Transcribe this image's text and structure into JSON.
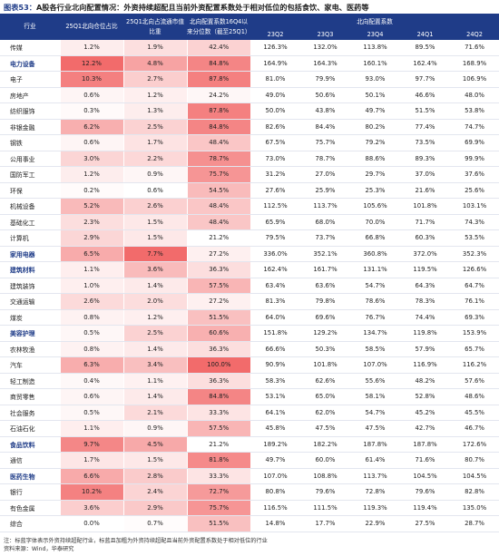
{
  "title": {
    "prefix": "图表53：",
    "text": "A股各行业北向配置情况：外资持续超配且当前外资配置系数处于相对低位的包括食饮、家电、医药等"
  },
  "table": {
    "headers": {
      "industry": "行业",
      "share": "25Q1北向仓位占比",
      "mcap": "25Q1北向占流通市值比重",
      "pct": "北向配置系数16Q4以来分位数（截至25Q1）",
      "coef": "北向配置系数",
      "quarters": [
        "23Q2",
        "23Q3",
        "23Q4",
        "24Q1",
        "24Q2"
      ]
    },
    "colors": {
      "header_bg": "#1f3c88",
      "highlight_text": "#1f3c88",
      "heat_high": "#f26b6b",
      "heat_low": "#ffffff"
    },
    "rows": [
      {
        "industry": "传媒",
        "highlight": false,
        "share": "1.2%",
        "mcap": "1.9%",
        "pct": "42.4%",
        "q": [
          "126.3%",
          "132.0%",
          "113.8%",
          "89.5%",
          "71.6%"
        ]
      },
      {
        "industry": "电力设备",
        "highlight": true,
        "share": "12.2%",
        "mcap": "4.8%",
        "pct": "84.8%",
        "q": [
          "164.9%",
          "164.3%",
          "160.1%",
          "162.4%",
          "168.9%"
        ]
      },
      {
        "industry": "电子",
        "highlight": false,
        "share": "10.3%",
        "mcap": "2.7%",
        "pct": "87.8%",
        "q": [
          "81.0%",
          "79.9%",
          "93.0%",
          "97.7%",
          "106.9%"
        ]
      },
      {
        "industry": "房地产",
        "highlight": false,
        "share": "0.6%",
        "mcap": "1.2%",
        "pct": "24.2%",
        "q": [
          "49.0%",
          "50.6%",
          "50.1%",
          "46.6%",
          "48.0%"
        ]
      },
      {
        "industry": "纺织服饰",
        "highlight": false,
        "share": "0.3%",
        "mcap": "1.3%",
        "pct": "87.8%",
        "q": [
          "50.0%",
          "43.8%",
          "49.7%",
          "51.5%",
          "53.8%"
        ]
      },
      {
        "industry": "非银金融",
        "highlight": false,
        "share": "6.2%",
        "mcap": "2.5%",
        "pct": "84.8%",
        "q": [
          "82.6%",
          "84.4%",
          "80.2%",
          "77.4%",
          "74.7%"
        ]
      },
      {
        "industry": "钢铁",
        "highlight": false,
        "share": "0.6%",
        "mcap": "1.7%",
        "pct": "48.4%",
        "q": [
          "67.5%",
          "75.7%",
          "79.2%",
          "73.5%",
          "69.9%"
        ]
      },
      {
        "industry": "公用事业",
        "highlight": false,
        "share": "3.0%",
        "mcap": "2.2%",
        "pct": "78.7%",
        "q": [
          "73.0%",
          "78.7%",
          "88.6%",
          "89.3%",
          "99.9%"
        ]
      },
      {
        "industry": "国防军工",
        "highlight": false,
        "share": "1.2%",
        "mcap": "0.9%",
        "pct": "75.7%",
        "q": [
          "31.2%",
          "27.0%",
          "29.7%",
          "37.0%",
          "37.6%"
        ]
      },
      {
        "industry": "环保",
        "highlight": false,
        "share": "0.2%",
        "mcap": "0.6%",
        "pct": "54.5%",
        "q": [
          "27.6%",
          "25.9%",
          "25.3%",
          "21.6%",
          "25.6%"
        ]
      },
      {
        "industry": "机械设备",
        "highlight": false,
        "share": "5.2%",
        "mcap": "2.6%",
        "pct": "48.4%",
        "q": [
          "112.5%",
          "113.7%",
          "105.6%",
          "101.8%",
          "103.1%"
        ]
      },
      {
        "industry": "基础化工",
        "highlight": false,
        "share": "2.3%",
        "mcap": "1.5%",
        "pct": "48.4%",
        "q": [
          "65.9%",
          "68.0%",
          "70.0%",
          "71.7%",
          "74.3%"
        ]
      },
      {
        "industry": "计算机",
        "highlight": false,
        "share": "2.9%",
        "mcap": "1.5%",
        "pct": "21.2%",
        "q": [
          "79.5%",
          "73.7%",
          "66.8%",
          "60.3%",
          "53.5%"
        ]
      },
      {
        "industry": "家用电器",
        "highlight": true,
        "share": "6.5%",
        "mcap": "7.7%",
        "pct": "27.2%",
        "q": [
          "336.0%",
          "352.1%",
          "360.8%",
          "372.0%",
          "352.3%"
        ]
      },
      {
        "industry": "建筑材料",
        "highlight": true,
        "share": "1.1%",
        "mcap": "3.6%",
        "pct": "36.3%",
        "q": [
          "162.4%",
          "161.7%",
          "131.1%",
          "119.5%",
          "126.6%"
        ]
      },
      {
        "industry": "建筑装饰",
        "highlight": false,
        "share": "1.0%",
        "mcap": "1.4%",
        "pct": "57.5%",
        "q": [
          "63.4%",
          "63.6%",
          "54.7%",
          "64.3%",
          "64.7%"
        ]
      },
      {
        "industry": "交通运输",
        "highlight": false,
        "share": "2.6%",
        "mcap": "2.0%",
        "pct": "27.2%",
        "q": [
          "81.3%",
          "79.8%",
          "78.6%",
          "78.3%",
          "76.1%"
        ]
      },
      {
        "industry": "煤炭",
        "highlight": false,
        "share": "0.8%",
        "mcap": "1.2%",
        "pct": "51.5%",
        "q": [
          "64.0%",
          "69.6%",
          "76.7%",
          "74.4%",
          "69.3%"
        ]
      },
      {
        "industry": "美容护理",
        "highlight": true,
        "share": "0.5%",
        "mcap": "2.5%",
        "pct": "60.6%",
        "q": [
          "151.8%",
          "129.2%",
          "134.7%",
          "119.8%",
          "153.9%"
        ]
      },
      {
        "industry": "农林牧渔",
        "highlight": false,
        "share": "0.8%",
        "mcap": "1.4%",
        "pct": "36.3%",
        "q": [
          "66.6%",
          "50.3%",
          "58.5%",
          "57.9%",
          "65.7%"
        ]
      },
      {
        "industry": "汽车",
        "highlight": false,
        "share": "6.3%",
        "mcap": "3.4%",
        "pct": "100.0%",
        "q": [
          "90.9%",
          "101.8%",
          "107.0%",
          "116.9%",
          "116.2%"
        ]
      },
      {
        "industry": "轻工制造",
        "highlight": false,
        "share": "0.4%",
        "mcap": "1.1%",
        "pct": "36.3%",
        "q": [
          "58.3%",
          "62.6%",
          "55.6%",
          "48.2%",
          "57.6%"
        ]
      },
      {
        "industry": "商贸零售",
        "highlight": false,
        "share": "0.6%",
        "mcap": "1.4%",
        "pct": "84.8%",
        "q": [
          "53.1%",
          "65.0%",
          "58.1%",
          "52.8%",
          "48.6%"
        ]
      },
      {
        "industry": "社会服务",
        "highlight": false,
        "share": "0.5%",
        "mcap": "2.1%",
        "pct": "33.3%",
        "q": [
          "64.1%",
          "62.0%",
          "54.7%",
          "45.2%",
          "45.5%"
        ]
      },
      {
        "industry": "石油石化",
        "highlight": false,
        "share": "1.1%",
        "mcap": "0.9%",
        "pct": "57.5%",
        "q": [
          "45.8%",
          "47.5%",
          "47.5%",
          "42.7%",
          "46.7%"
        ]
      },
      {
        "industry": "食品饮料",
        "highlight": true,
        "share": "9.7%",
        "mcap": "4.5%",
        "pct": "21.2%",
        "q": [
          "189.2%",
          "182.2%",
          "187.8%",
          "187.8%",
          "172.6%"
        ]
      },
      {
        "industry": "通信",
        "highlight": false,
        "share": "1.7%",
        "mcap": "1.5%",
        "pct": "81.8%",
        "q": [
          "49.7%",
          "60.0%",
          "61.4%",
          "71.6%",
          "80.7%"
        ]
      },
      {
        "industry": "医药生物",
        "highlight": true,
        "share": "6.6%",
        "mcap": "2.8%",
        "pct": "33.3%",
        "q": [
          "107.0%",
          "108.8%",
          "113.7%",
          "104.5%",
          "104.5%"
        ]
      },
      {
        "industry": "银行",
        "highlight": false,
        "share": "10.2%",
        "mcap": "2.4%",
        "pct": "72.7%",
        "q": [
          "80.8%",
          "79.6%",
          "72.8%",
          "79.6%",
          "82.8%"
        ]
      },
      {
        "industry": "有色金属",
        "highlight": false,
        "share": "3.6%",
        "mcap": "2.9%",
        "pct": "75.7%",
        "q": [
          "116.5%",
          "111.5%",
          "119.3%",
          "119.4%",
          "135.0%"
        ]
      },
      {
        "industry": "综合",
        "highlight": false,
        "share": "0.0%",
        "mcap": "0.7%",
        "pct": "51.5%",
        "q": [
          "14.8%",
          "17.7%",
          "22.9%",
          "27.5%",
          "28.7%"
        ]
      }
    ]
  },
  "notes": {
    "note": "注：标蓝字体表示外资持续超配行业，标蓝且加粗为外资持续超配且当前外资配置系数处于相对低位的行业",
    "source": "资料来源：Wind，华泰研究"
  }
}
